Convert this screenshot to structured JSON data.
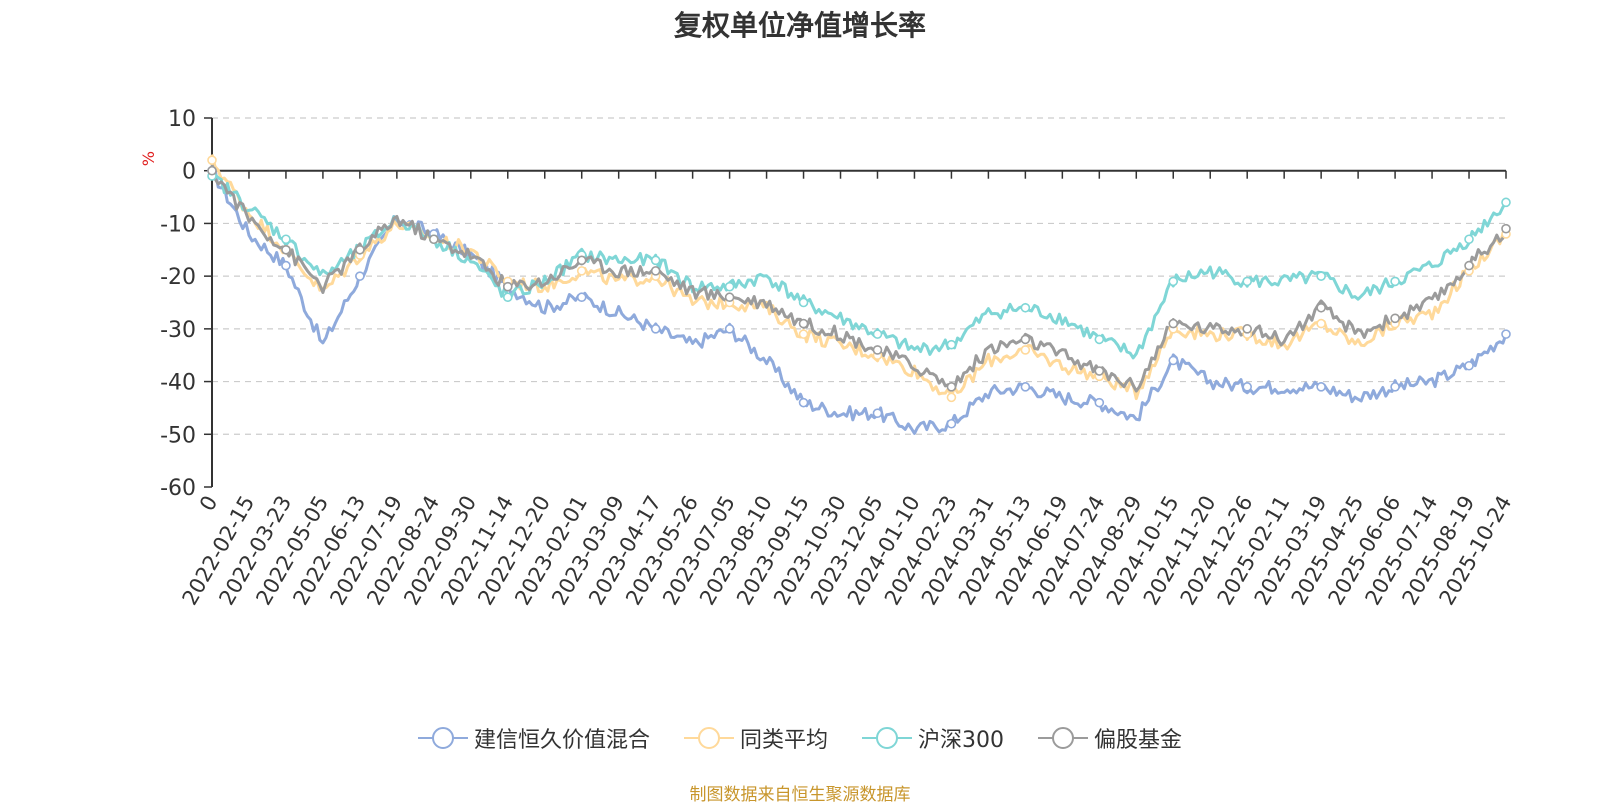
{
  "chart_data": {
    "type": "line",
    "title": "复权单位净值增长率",
    "ylabel": "%",
    "xlabel": "",
    "ylim": [
      -60,
      10
    ],
    "yticks": [
      10,
      0,
      -10,
      -20,
      -30,
      -40,
      -50,
      -60
    ],
    "grid": "horizontal dashed",
    "categories": [
      "0",
      "2022-02-15",
      "2022-03-23",
      "2022-05-05",
      "2022-06-13",
      "2022-07-19",
      "2022-08-24",
      "2022-09-30",
      "2022-11-14",
      "2022-12-20",
      "2023-02-01",
      "2023-03-09",
      "2023-04-17",
      "2023-05-26",
      "2023-07-05",
      "2023-08-10",
      "2023-09-15",
      "2023-10-30",
      "2023-12-05",
      "2024-01-10",
      "2024-02-23",
      "2024-03-31",
      "2024-05-13",
      "2024-06-19",
      "2024-07-24",
      "2024-08-29",
      "2024-10-15",
      "2024-11-20",
      "2024-12-26",
      "2025-02-11",
      "2025-03-19",
      "2025-04-25",
      "2025-06-06",
      "2025-07-14",
      "2025-08-19",
      "2025-10-24"
    ],
    "series": [
      {
        "name": "建信恒久价值混合",
        "color": "#8faadc",
        "values": [
          0,
          -12,
          -18,
          -33,
          -20,
          -9,
          -12,
          -16,
          -22,
          -26,
          -24,
          -27,
          -30,
          -33,
          -30,
          -36,
          -44,
          -46,
          -46,
          -49,
          -48,
          -42,
          -41,
          -43,
          -44,
          -47,
          -36,
          -40,
          -41,
          -41,
          -41,
          -43,
          -41,
          -40,
          -37,
          -31
        ]
      },
      {
        "name": "同类平均",
        "color": "#ffd99a",
        "values": [
          2,
          -8,
          -15,
          -23,
          -16,
          -10,
          -13,
          -15,
          -21,
          -22,
          -19,
          -21,
          -20,
          -25,
          -25,
          -26,
          -31,
          -33,
          -35,
          -38,
          -43,
          -36,
          -34,
          -37,
          -39,
          -42,
          -30,
          -31,
          -31,
          -33,
          -29,
          -33,
          -29,
          -27,
          -19,
          -12
        ]
      },
      {
        "name": "沪深300",
        "color": "#7fd6d6",
        "values": [
          -1,
          -7,
          -13,
          -20,
          -15,
          -9,
          -13,
          -17,
          -24,
          -21,
          -16,
          -17,
          -17,
          -22,
          -22,
          -20,
          -25,
          -28,
          -31,
          -34,
          -33,
          -27,
          -26,
          -28,
          -32,
          -35,
          -21,
          -19,
          -21,
          -21,
          -20,
          -24,
          -21,
          -18,
          -13,
          -6
        ]
      },
      {
        "name": "偏股基金",
        "color": "#9b9b9b",
        "values": [
          0,
          -9,
          -15,
          -22,
          -15,
          -9,
          -13,
          -16,
          -22,
          -21,
          -17,
          -19,
          -19,
          -23,
          -24,
          -25,
          -29,
          -31,
          -34,
          -37,
          -41,
          -34,
          -32,
          -35,
          -38,
          -41,
          -29,
          -30,
          -30,
          -32,
          -26,
          -31,
          -28,
          -25,
          -18,
          -11
        ]
      }
    ],
    "legend_position": "bottom-center"
  },
  "source_note": "制图数据来自恒生聚源数据库"
}
